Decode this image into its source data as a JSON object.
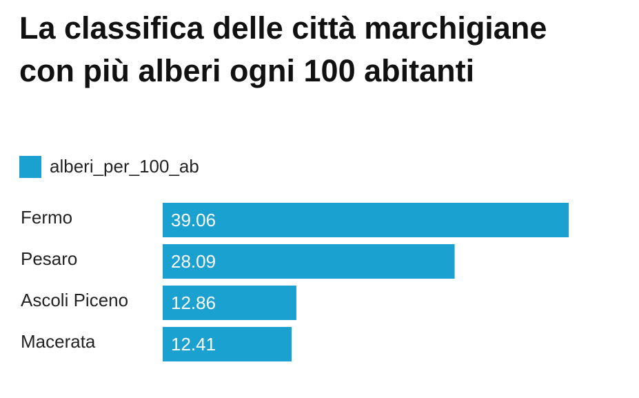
{
  "chart_data": {
    "type": "bar",
    "orientation": "horizontal",
    "title": "La classifica delle città marchigiane con più alberi ogni 100 abitanti",
    "categories": [
      "Fermo",
      "Pesaro",
      "Ascoli Piceno",
      "Macerata"
    ],
    "series": [
      {
        "name": "alberi_per_100_ab",
        "color": "#1aa1cf",
        "values": [
          39.06,
          28.09,
          12.86,
          12.41
        ]
      }
    ],
    "legend": "top-left"
  }
}
